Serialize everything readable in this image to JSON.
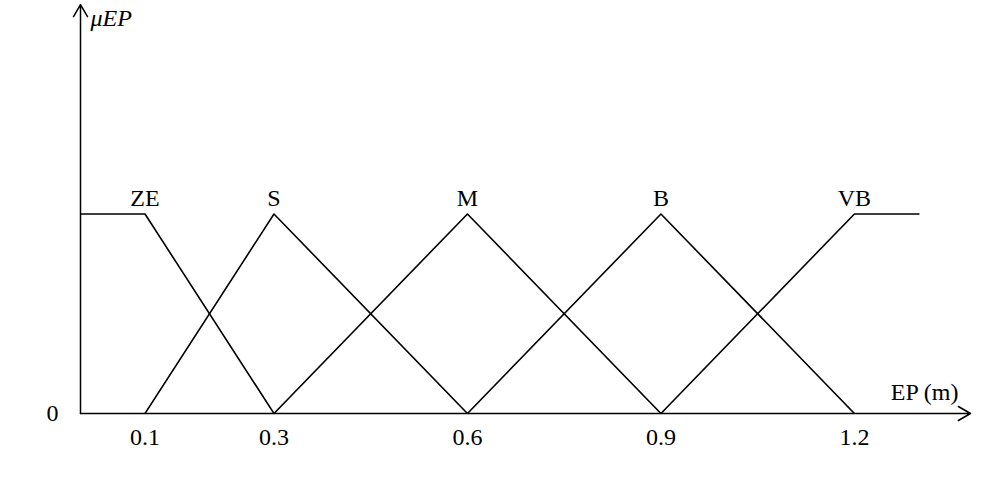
{
  "chart_data": {
    "type": "line",
    "xlabel": "EP (m)",
    "ylabel": "μEP",
    "xlim": [
      0,
      1.38
    ],
    "ylim": [
      0,
      2.05
    ],
    "xticks": [
      0.1,
      0.3,
      0.6,
      0.9,
      1.2
    ],
    "yticks": [
      0
    ],
    "series": [
      {
        "name": "ZE",
        "color": "#000000",
        "x": [
          0,
          0.1,
          0.3
        ],
        "values": [
          1,
          1,
          0
        ]
      },
      {
        "name": "S",
        "color": "#000000",
        "x": [
          0.1,
          0.3,
          0.6
        ],
        "values": [
          0,
          1,
          0
        ]
      },
      {
        "name": "M",
        "color": "#000000",
        "x": [
          0.3,
          0.6,
          0.9
        ],
        "values": [
          0,
          1,
          0
        ]
      },
      {
        "name": "B",
        "color": "#000000",
        "x": [
          0.6,
          0.9,
          1.2
        ],
        "values": [
          0,
          1,
          0
        ]
      },
      {
        "name": "VB",
        "color": "#000000",
        "x": [
          0.9,
          1.2,
          1.3
        ],
        "values": [
          0,
          1,
          1
        ]
      }
    ]
  }
}
